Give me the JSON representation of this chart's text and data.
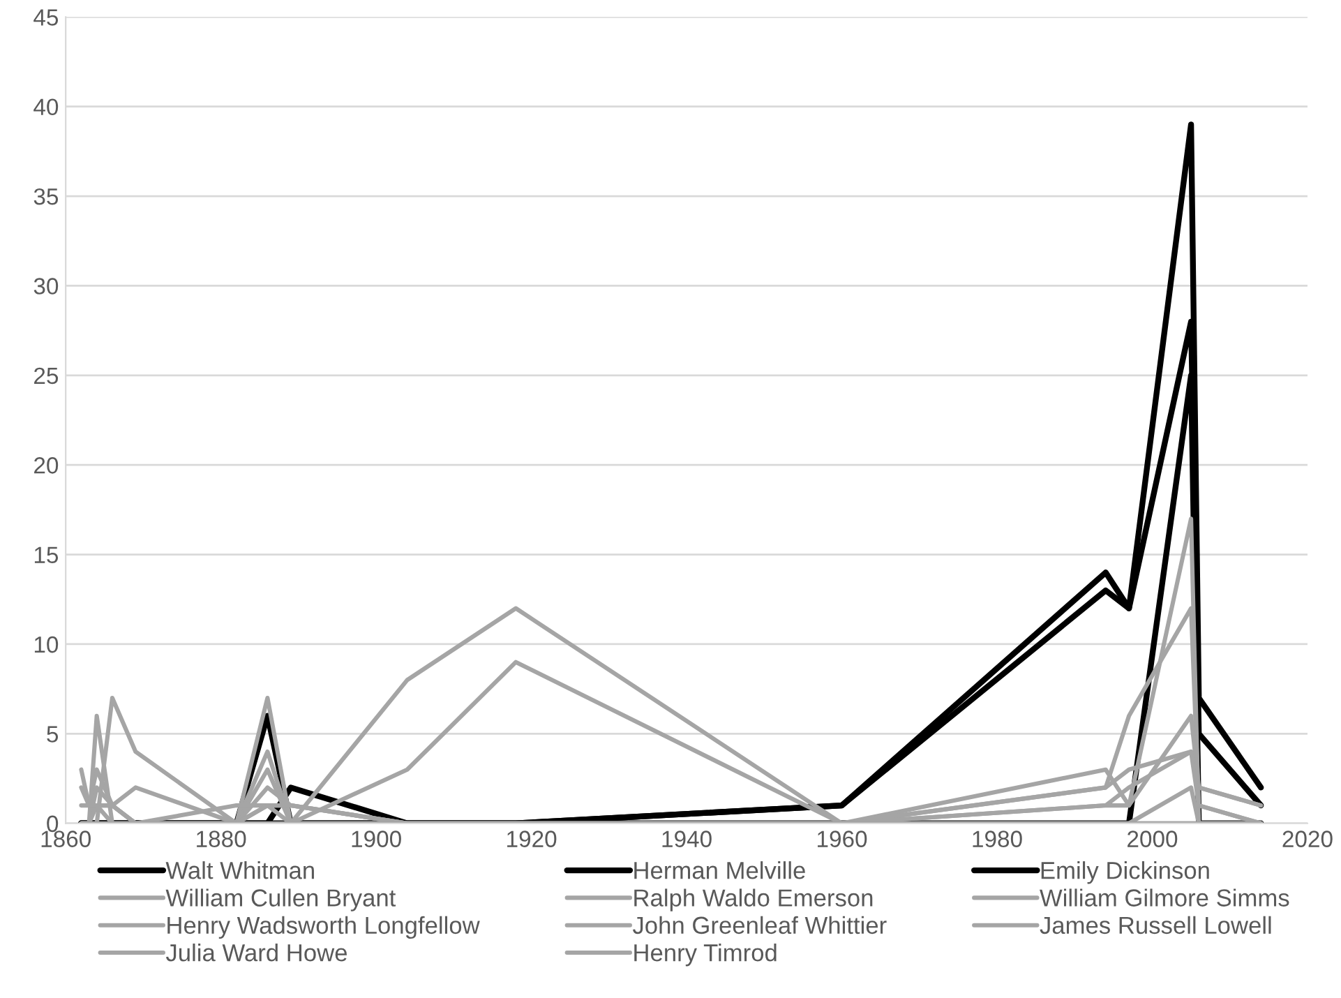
{
  "chart_data": {
    "type": "line",
    "x": [
      1862,
      1863,
      1864,
      1866,
      1869,
      1882,
      1886,
      1889,
      1904,
      1918,
      1960,
      1994,
      1997,
      2005,
      2006,
      2014
    ],
    "series": [
      {
        "name": "Walt Whitman",
        "color": "#000000",
        "values": [
          0,
          0,
          0,
          0,
          0,
          0,
          6,
          0,
          0,
          0,
          0,
          0,
          0,
          25,
          0,
          0
        ]
      },
      {
        "name": "Herman Melville",
        "color": "#000000",
        "values": [
          0,
          0,
          0,
          0,
          0,
          0,
          0,
          2,
          0,
          0,
          1,
          14,
          12,
          39,
          7,
          2
        ]
      },
      {
        "name": "Emily Dickinson",
        "color": "#000000",
        "values": [
          0,
          0,
          0,
          0,
          0,
          0,
          0,
          0,
          0,
          0,
          1,
          13,
          12,
          28,
          5,
          1
        ]
      },
      {
        "name": "William Cullen Bryant",
        "color": "#a5a5a5",
        "values": [
          3,
          1,
          1,
          1,
          0,
          0,
          4,
          0,
          8,
          12,
          0,
          3,
          1,
          17,
          0,
          0
        ]
      },
      {
        "name": "Ralph Waldo Emerson",
        "color": "#a5a5a5",
        "values": [
          2,
          1,
          3,
          1,
          0,
          0,
          3,
          0,
          3,
          9,
          0,
          2,
          6,
          12,
          1,
          0
        ]
      },
      {
        "name": "William Gilmore Simms",
        "color": "#a5a5a5",
        "values": [
          0,
          0,
          6,
          0,
          0,
          0,
          7,
          0,
          0,
          0,
          0,
          1,
          1,
          6,
          2,
          1
        ]
      },
      {
        "name": "Henry Wadsworth Longfellow",
        "color": "#a5a5a5",
        "values": [
          0,
          0,
          0,
          7,
          4,
          0,
          2,
          1,
          0,
          0,
          0,
          2,
          3,
          4,
          2,
          1
        ]
      },
      {
        "name": "John Greenleaf Whittier",
        "color": "#a5a5a5",
        "values": [
          0,
          0,
          2,
          1,
          2,
          0,
          1,
          1,
          0,
          0,
          0,
          1,
          2,
          4,
          1,
          0
        ]
      },
      {
        "name": "James Russell Lowell",
        "color": "#a5a5a5",
        "values": [
          0,
          0,
          1,
          1,
          0,
          1,
          1,
          1,
          0,
          0,
          0,
          0,
          0,
          2,
          0,
          0
        ]
      },
      {
        "name": "Julia Ward Howe",
        "color": "#a5a5a5",
        "values": [
          0,
          0,
          0,
          0,
          0,
          0,
          0,
          0,
          0,
          0,
          0,
          0,
          0,
          0,
          0,
          0
        ]
      },
      {
        "name": "Henry Timrod",
        "color": "#a5a5a5",
        "values": [
          1,
          1,
          1,
          0,
          0,
          0,
          1,
          0,
          0,
          0,
          0,
          0,
          0,
          0,
          0,
          0
        ]
      }
    ],
    "xlim": [
      1860,
      2020
    ],
    "xticks": [
      1860,
      1880,
      1900,
      1920,
      1940,
      1960,
      1980,
      2000,
      2020
    ],
    "ylim": [
      0,
      45
    ],
    "yticks": [
      0,
      5,
      10,
      15,
      20,
      25,
      30,
      35,
      40,
      45
    ],
    "grid": "y",
    "legend": "bottom",
    "marker": "none",
    "line_style": "solid"
  }
}
